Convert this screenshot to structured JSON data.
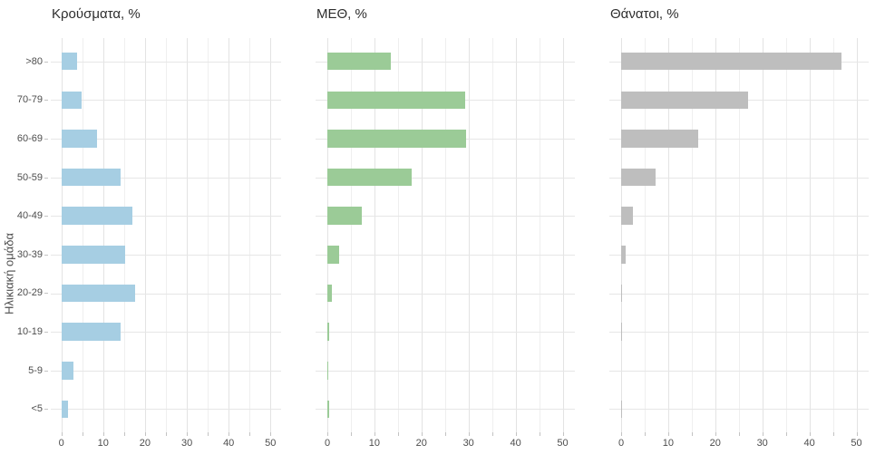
{
  "figure": {
    "background": "#ffffff"
  },
  "y_axis": {
    "title": "Ηλικιακή ομάδα",
    "categories": [
      ">80",
      "70-79",
      "60-69",
      "50-59",
      "40-49",
      "30-39",
      "20-29",
      "10-19",
      "5-9",
      "<5"
    ]
  },
  "x_axis": {
    "tick_labels": [
      0,
      10,
      20,
      30,
      40,
      50
    ],
    "minor_step": 5,
    "max_shown": 50
  },
  "colors": {
    "cases_bar": "#a6cee3",
    "icu_bar": "#9bcb97",
    "deaths_bar": "#bebebe",
    "grid_major": "#e3e3e3",
    "grid_minor": "#efefef",
    "axis_text": "#4d4d4d",
    "title_text": "#2e2e2e"
  },
  "chart_data": {
    "type": "bar",
    "orientation": "horizontal",
    "categories": [
      ">80",
      "70-79",
      "60-69",
      "50-59",
      "40-49",
      "30-39",
      "20-29",
      "10-19",
      "5-9",
      "<5"
    ],
    "ylabel": "Ηλικιακή ομάδα",
    "xlim": [
      0,
      52.6
    ],
    "x_ticks": [
      0,
      10,
      20,
      30,
      40,
      50
    ],
    "grid": true,
    "legend": false,
    "panels": [
      {
        "title": "Κρούσματα, %",
        "color": "#a6cee3",
        "values": [
          3.8,
          4.9,
          8.6,
          14.2,
          17.0,
          15.2,
          17.6,
          14.1,
          2.9,
          1.6
        ]
      },
      {
        "title": "ΜΕΘ, %",
        "color": "#9bcb97",
        "values": [
          13.4,
          29.2,
          29.4,
          17.9,
          7.4,
          2.4,
          1.0,
          0.3,
          0.2,
          0.3
        ]
      },
      {
        "title": "Θάνατοι, %",
        "color": "#bebebe",
        "values": [
          46.8,
          26.9,
          16.4,
          7.3,
          2.4,
          0.9,
          0.2,
          0.2,
          0.0,
          0.1
        ]
      }
    ]
  }
}
